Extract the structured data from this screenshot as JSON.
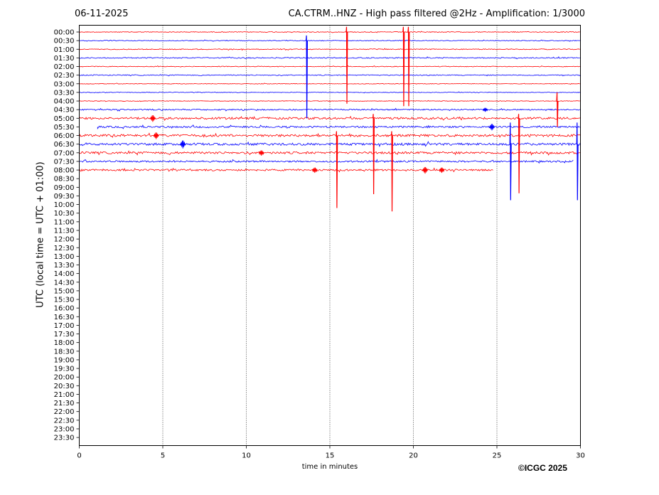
{
  "chart_data": {
    "type": "line",
    "date": "06-11-2025",
    "title": "CA.CTRM..HNZ - High pass filtered @2Hz - Amplification: 1/3000",
    "xlabel": "time in minutes",
    "ylabel": "UTC (local time = UTC + 01:00)",
    "credit": "©ICGC 2025",
    "xlim": [
      0,
      30
    ],
    "x_ticks": [
      0,
      5,
      10,
      15,
      20,
      25,
      30
    ],
    "grid": "vertical dotted lines at x ticks",
    "y_ticks": [
      "00:00",
      "00:30",
      "01:00",
      "01:30",
      "02:00",
      "02:30",
      "03:00",
      "03:30",
      "04:00",
      "04:30",
      "05:00",
      "05:30",
      "06:00",
      "06:30",
      "07:00",
      "07:30",
      "08:00",
      "08:30",
      "09:00",
      "09:30",
      "10:00",
      "10:30",
      "11:00",
      "11:30",
      "12:00",
      "12:30",
      "13:00",
      "13:30",
      "14:00",
      "14:30",
      "15:00",
      "15:30",
      "16:00",
      "16:30",
      "17:00",
      "17:30",
      "18:00",
      "18:30",
      "19:00",
      "19:30",
      "20:00",
      "20:30",
      "21:00",
      "21:30",
      "22:00",
      "22:30",
      "23:00",
      "23:30"
    ],
    "series_colors": [
      "#ff0000",
      "#0000ff"
    ],
    "traces": [
      {
        "row": "00:00",
        "color": "#ff0000",
        "start": 0,
        "end": 30,
        "amp": 0.5
      },
      {
        "row": "00:30",
        "color": "#0000ff",
        "start": 0,
        "end": 30,
        "amp": 0.5
      },
      {
        "row": "01:00",
        "color": "#ff0000",
        "start": 0,
        "end": 30,
        "amp": 0.6
      },
      {
        "row": "01:30",
        "color": "#0000ff",
        "start": 0,
        "end": 30,
        "amp": 0.7
      },
      {
        "row": "02:00",
        "color": "#ff0000",
        "start": 0,
        "end": 30,
        "amp": 0.5
      },
      {
        "row": "02:30",
        "color": "#0000ff",
        "start": 0,
        "end": 30,
        "amp": 0.6
      },
      {
        "row": "03:00",
        "color": "#ff0000",
        "start": 0,
        "end": 30,
        "amp": 0.4
      },
      {
        "row": "03:30",
        "color": "#0000ff",
        "start": 0,
        "end": 30,
        "amp": 0.4
      },
      {
        "row": "04:00",
        "color": "#ff0000",
        "start": 0,
        "end": 30,
        "amp": 0.4
      },
      {
        "row": "04:30",
        "color": "#0000ff",
        "start": 0,
        "end": 30,
        "amp": 0.9
      },
      {
        "row": "05:00",
        "color": "#ff0000",
        "start": 0,
        "end": 30,
        "amp": 1.4
      },
      {
        "row": "05:30",
        "color": "#0000ff",
        "start": 1.1,
        "end": 30,
        "amp": 1.2
      },
      {
        "row": "06:00",
        "color": "#ff0000",
        "start": 0,
        "end": 30,
        "amp": 1.6
      },
      {
        "row": "06:30",
        "color": "#0000ff",
        "start": 0,
        "end": 30,
        "amp": 1.6
      },
      {
        "row": "07:00",
        "color": "#ff0000",
        "start": 0,
        "end": 30,
        "amp": 1.5
      },
      {
        "row": "07:30",
        "color": "#0000ff",
        "start": 0,
        "end": 29.6,
        "amp": 1.2
      },
      {
        "row": "08:00",
        "color": "#ff0000",
        "start": 0,
        "end": 24.8,
        "amp": 1.2
      }
    ],
    "spikes": [
      {
        "x": 13.6,
        "row": "00:30",
        "color": "#0000ff",
        "up": 0.6,
        "down": 9.0
      },
      {
        "x": 16.0,
        "row": "00:00",
        "color": "#ff0000",
        "up": 0.6,
        "down": 8.3
      },
      {
        "x": 19.4,
        "row": "00:00",
        "color": "#ff0000",
        "up": 0.6,
        "down": 8.6
      },
      {
        "x": 19.7,
        "row": "00:00",
        "color": "#ff0000",
        "up": 0.6,
        "down": 8.6
      },
      {
        "x": 15.4,
        "row": "06:00",
        "color": "#ff0000",
        "up": 0.5,
        "down": 8.4
      },
      {
        "x": 17.6,
        "row": "05:00",
        "color": "#ff0000",
        "up": 0.5,
        "down": 8.8
      },
      {
        "x": 18.7,
        "row": "06:00",
        "color": "#ff0000",
        "up": 0.5,
        "down": 8.8
      },
      {
        "x": 25.8,
        "row": "06:30",
        "color": "#0000ff",
        "up": 2.5,
        "down": 6.5
      },
      {
        "x": 26.3,
        "row": "05:00",
        "color": "#ff0000",
        "up": 0.5,
        "down": 8.7
      },
      {
        "x": 28.6,
        "row": "04:00",
        "color": "#ff0000",
        "up": 1.0,
        "down": 3.0
      },
      {
        "x": 29.8,
        "row": "06:30",
        "color": "#0000ff",
        "up": 2.5,
        "down": 6.5
      }
    ],
    "bursts": [
      {
        "x": 4.4,
        "row": "05:00",
        "color": "#ff0000",
        "amp": 5
      },
      {
        "x": 6.2,
        "row": "06:30",
        "color": "#0000ff",
        "amp": 6
      },
      {
        "x": 4.6,
        "row": "06:00",
        "color": "#ff0000",
        "amp": 5
      },
      {
        "x": 10.9,
        "row": "07:00",
        "color": "#ff0000",
        "amp": 4
      },
      {
        "x": 14.1,
        "row": "08:00",
        "color": "#ff0000",
        "amp": 4
      },
      {
        "x": 24.7,
        "row": "05:30",
        "color": "#0000ff",
        "amp": 5
      },
      {
        "x": 24.3,
        "row": "04:30",
        "color": "#0000ff",
        "amp": 3
      },
      {
        "x": 20.7,
        "row": "08:00",
        "color": "#ff0000",
        "amp": 5
      },
      {
        "x": 21.7,
        "row": "08:00",
        "color": "#ff0000",
        "amp": 4
      }
    ]
  }
}
